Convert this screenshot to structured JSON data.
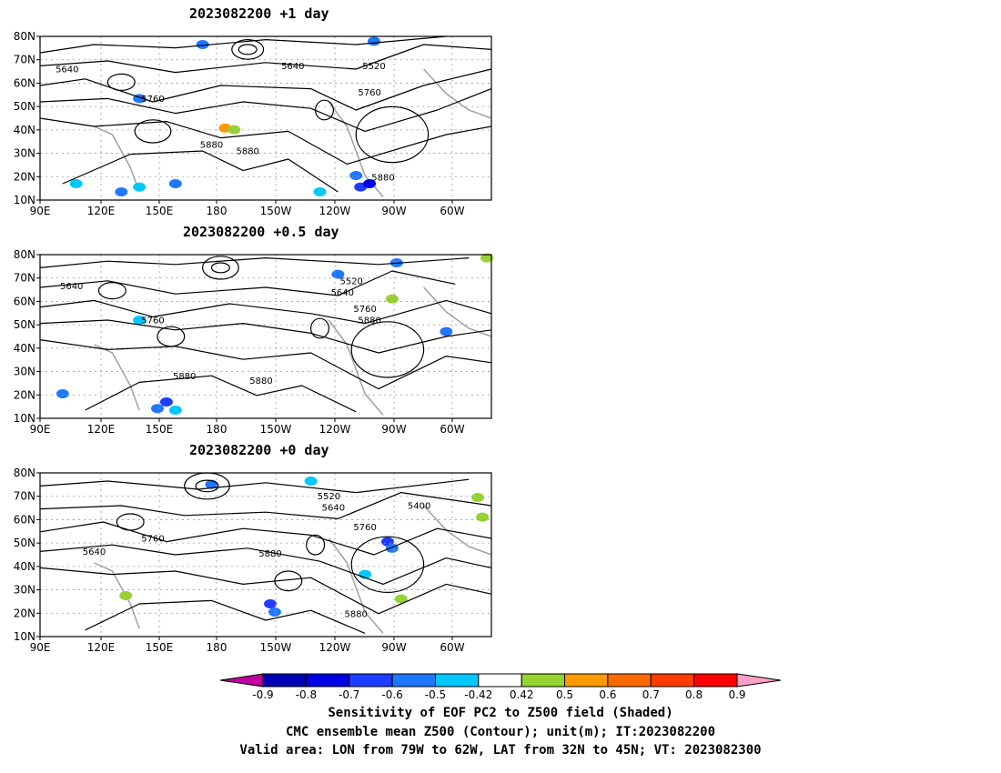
{
  "panels": [
    {
      "title": "2023082200 +1 day",
      "contour_labels": [
        "5640",
        "5640",
        "5520",
        "5760",
        "5760",
        "5880",
        "5880",
        "5880"
      ]
    },
    {
      "title": "2023082200 +0.5 day",
      "contour_labels": [
        "5640",
        "5520",
        "5640",
        "5760",
        "5760",
        "5880",
        "5880",
        "5880"
      ]
    },
    {
      "title": "2023082200 +0 day",
      "contour_labels": [
        "5520",
        "5640",
        "5400",
        "5760",
        "5640",
        "5760",
        "5880",
        "5880"
      ]
    }
  ],
  "colorbar": {
    "labels": [
      "-0.9",
      "-0.8",
      "-0.7",
      "-0.6",
      "-0.5",
      "-0.42",
      "0.42",
      "0.5",
      "0.6",
      "0.7",
      "0.8",
      "0.9"
    ],
    "colors": [
      "#c000a0",
      "#0000b4",
      "#0000e6",
      "#1e3cff",
      "#1e78ff",
      "#00c8ff",
      "#ffffff",
      "#96d232",
      "#ff9900",
      "#ff6a00",
      "#ff3c00",
      "#ff0000",
      "#ffa0c8"
    ]
  },
  "captions": [
    "Sensitivity of EOF PC2 to Z500 field (Shaded)",
    "CMC ensemble mean Z500 (Contour); unit(m); IT:2023082200",
    "Valid area: LON from 79W to 62W, LAT from 32N to 45N; VT: 2023082300"
  ],
  "chart_data": [
    {
      "type": "heatmap",
      "title": "2023082200 +1 day",
      "x_ticks": [
        "90E",
        "120E",
        "150E",
        "180",
        "150W",
        "120W",
        "90W",
        "60W"
      ],
      "y_ticks": [
        "10N",
        "20N",
        "30N",
        "40N",
        "50N",
        "60N",
        "70N",
        "80N"
      ],
      "contour_labels": [
        "5640",
        "5640",
        "5520",
        "5760",
        "5760",
        "5880",
        "5880",
        "5880"
      ]
    },
    {
      "type": "heatmap",
      "title": "2023082200 +0.5 day",
      "x_ticks": [
        "90E",
        "120E",
        "150E",
        "180",
        "150W",
        "120W",
        "90W",
        "60W"
      ],
      "y_ticks": [
        "10N",
        "20N",
        "30N",
        "40N",
        "50N",
        "60N",
        "70N",
        "80N"
      ],
      "contour_labels": [
        "5640",
        "5520",
        "5640",
        "5760",
        "5760",
        "5880",
        "5880",
        "5880"
      ]
    },
    {
      "type": "heatmap",
      "title": "2023082200 +0 day",
      "x_ticks": [
        "90E",
        "120E",
        "150E",
        "180",
        "150W",
        "120W",
        "90W",
        "60W"
      ],
      "y_ticks": [
        "10N",
        "20N",
        "30N",
        "40N",
        "50N",
        "60N",
        "70N",
        "80N"
      ],
      "contour_labels": [
        "5520",
        "5640",
        "5400",
        "5760",
        "5640",
        "5760",
        "5880",
        "5880"
      ]
    }
  ]
}
